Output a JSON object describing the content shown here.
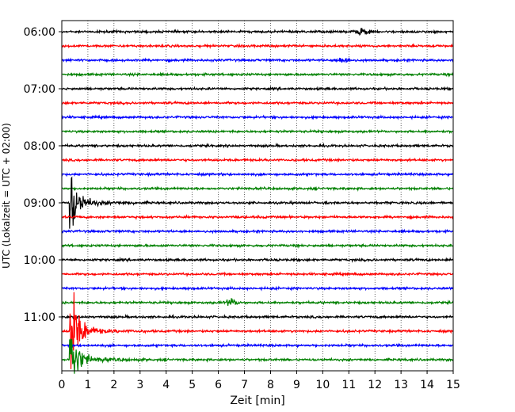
{
  "chart_data": {
    "type": "line",
    "title": "",
    "xlabel": "Zeit  [min]",
    "ylabel": "UTC (Lokalzeit = UTC + 02:00)",
    "xlim": [
      0,
      15
    ],
    "x_ticks": [
      "0",
      "1",
      "2",
      "3",
      "4",
      "5",
      "6",
      "7",
      "8",
      "9",
      "10",
      "11",
      "12",
      "13",
      "14",
      "15"
    ],
    "y_ticks": [
      "06:00",
      "07:00",
      "08:00",
      "09:00",
      "10:00",
      "11:00"
    ],
    "grid": "vertical dotted at each minute",
    "trace_interval_min": 15,
    "traces_start": "06:00",
    "traces_end": "11:45",
    "trace_colors": [
      "#000000",
      "#ff0000",
      "#0000ff",
      "#008000"
    ],
    "events": [
      {
        "trace": "06:00",
        "x_min": 11.5,
        "amplitude": "small"
      },
      {
        "trace": "06:30",
        "x_min": 10.8,
        "amplitude": "small"
      },
      {
        "trace": "09:00",
        "x_min": 0.35,
        "amplitude": "large"
      },
      {
        "trace": "11:15",
        "x_min": 0.35,
        "amplitude": "very large"
      },
      {
        "trace": "10:45",
        "x_min": 6.5,
        "amplitude": "small"
      },
      {
        "trace": "11:45",
        "x_min": 0.35,
        "amplitude": "large"
      }
    ]
  }
}
